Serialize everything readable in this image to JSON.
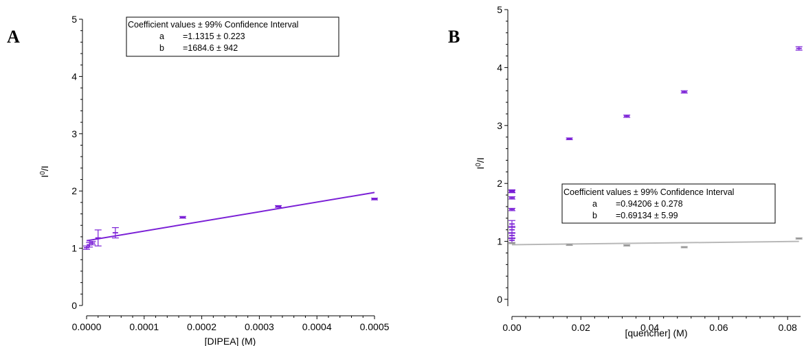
{
  "chart_data": [
    {
      "type": "scatter",
      "panel_label": "A",
      "title": "",
      "xlabel": "[DIPEA] (M)",
      "ylabel": "I0/I",
      "ylabel_parts": {
        "base_top": "I",
        "superscript": "0",
        "slash": "/",
        "base_bottom": "I"
      },
      "xlim": [
        0,
        0.0005
      ],
      "ylim": [
        0,
        5
      ],
      "x_tick_labels": [
        "0.0000",
        "0.0001",
        "0.0002",
        "0.0003",
        "0.0004",
        "0.0005"
      ],
      "y_tick_labels": [
        "0",
        "1",
        "2",
        "3",
        "4",
        "5"
      ],
      "colors": {
        "points": "#7a1fd6",
        "fit": "#7a1fd6"
      },
      "series": [
        {
          "x": [
            0,
            5e-06,
            1e-05,
            2e-05,
            5e-05,
            0.000167,
            0.000333,
            0.0005
          ],
          "y": [
            1.01,
            1.06,
            1.09,
            1.18,
            1.27,
            1.54,
            1.73,
            1.86
          ],
          "error": [
            0.03,
            0.04,
            0.03,
            0.14,
            0.09,
            0.015,
            0.015,
            0.015
          ]
        }
      ],
      "fit_line": {
        "x": [
          0,
          0.0005
        ],
        "y": [
          1.1315,
          1.9738
        ]
      },
      "annotation": {
        "title": "Coefficient values ± 99% Confidence Interval",
        "rows": [
          {
            "name": "a",
            "value": "=1.1315 ± 0.223"
          },
          {
            "name": "b",
            "value": "=1684.6 ± 942"
          }
        ]
      }
    },
    {
      "type": "scatter",
      "panel_label": "B",
      "title": "",
      "xlabel": "[quencher] (M)",
      "ylabel": "I0/I",
      "ylabel_parts": {
        "base_top": "I",
        "superscript": "0",
        "slash": "/",
        "base_bottom": "I"
      },
      "xlim": [
        0,
        0.083
      ],
      "ylim": [
        0,
        5
      ],
      "x_tick_labels": [
        "0.00",
        "0.02",
        "0.04",
        "0.06",
        "0.08"
      ],
      "y_tick_labels": [
        "0",
        "1",
        "2",
        "3",
        "4",
        "5"
      ],
      "colors": {
        "points": "#7a1fd6",
        "gray_points": "#9a9a9a",
        "fit": "#b8b8b8"
      },
      "series": [
        {
          "x": [
            0,
            0,
            0,
            0,
            0,
            0,
            0,
            0,
            0.01667,
            0.03333,
            0.05,
            0.0833
          ],
          "y": [
            1.02,
            1.1,
            1.2,
            1.3,
            1.55,
            1.75,
            1.86,
            1.87,
            2.77,
            3.16,
            3.58,
            4.33
          ],
          "error": [
            0.04,
            0.05,
            0.06,
            0.06,
            0.02,
            0.02,
            0.02,
            0.02,
            0.015,
            0.02,
            0.02,
            0.03
          ]
        },
        {
          "x": [
            0,
            0.01667,
            0.03333,
            0.05,
            0.0833
          ],
          "y": [
            0.97,
            0.94,
            0.93,
            0.9,
            1.05
          ],
          "error": [
            0.01,
            0.01,
            0.01,
            0.01,
            0.01
          ]
        }
      ],
      "fit_line": {
        "x": [
          0,
          0.0833
        ],
        "y": [
          0.94206,
          1.0
        ]
      },
      "annotation": {
        "title": "Coefficient values ± 99% Confidence Interval",
        "rows": [
          {
            "name": "a",
            "value": "=0.94206 ± 0.278"
          },
          {
            "name": "b",
            "value": "=0.69134 ± 5.99"
          }
        ]
      }
    }
  ]
}
